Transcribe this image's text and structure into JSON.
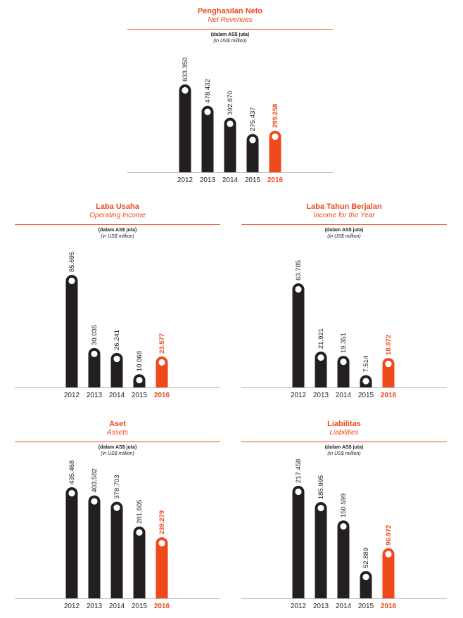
{
  "colors": {
    "accent": "#ef4a1c",
    "bar": "#231f20",
    "baseline": "#bcbcbc"
  },
  "chart_data": [
    {
      "type": "bar",
      "title": "Penghasilan Neto",
      "subtitle": "Net Revenues",
      "unit_id": "(dalam AS$ juta)",
      "unit_en": "(in US$ million)",
      "categories": [
        "2012",
        "2013",
        "2014",
        "2015",
        "2016"
      ],
      "values": [
        633.35,
        478.432,
        392.67,
        275.437,
        299.258
      ],
      "value_labels": [
        "633.350",
        "478.432",
        "392.670",
        "275.437",
        "299.258"
      ],
      "highlight": "2016",
      "ylim": [
        0,
        633.35
      ]
    },
    {
      "type": "bar",
      "title": "Laba Usaha",
      "subtitle": "Operating Income",
      "unit_id": "(dalam AS$ juta)",
      "unit_en": "(in US$ million)",
      "categories": [
        "2012",
        "2013",
        "2014",
        "2015",
        "2016"
      ],
      "values": [
        85.695,
        30.035,
        26.241,
        10.068,
        23.577
      ],
      "value_labels": [
        "85.695",
        "30.035",
        "26.241",
        "10.068",
        "23.577"
      ],
      "highlight": "2016",
      "ylim": [
        0,
        85.695
      ]
    },
    {
      "type": "bar",
      "title": "Laba Tahun Berjalan",
      "subtitle": "Income for the Year",
      "unit_id": "(dalam AS$ juta)",
      "unit_en": "(in US$ million)",
      "categories": [
        "2012",
        "2013",
        "2014",
        "2015",
        "2016"
      ],
      "values": [
        63.785,
        21.921,
        19.351,
        7.514,
        18.072
      ],
      "value_labels": [
        "63.785",
        "21.921",
        "19.351",
        "7.514",
        "18.072"
      ],
      "highlight": "2016",
      "ylim": [
        0,
        63.785
      ]
    },
    {
      "type": "bar",
      "title": "Aset",
      "subtitle": "Assets",
      "unit_id": "(dalam AS$ juta)",
      "unit_en": "(in US$ million)",
      "categories": [
        "2012",
        "2013",
        "2014",
        "2015",
        "2016"
      ],
      "values": [
        435.468,
        403.582,
        378.703,
        281.605,
        239.279
      ],
      "value_labels": [
        "435.468",
        "403.582",
        "378.703",
        "281.605",
        "239.279"
      ],
      "highlight": "2016",
      "ylim": [
        0,
        435.468
      ]
    },
    {
      "type": "bar",
      "title": "Liabilitas",
      "subtitle": "Liabilities",
      "unit_id": "(dalam AS$ juta)",
      "unit_en": "(in US$ million)",
      "categories": [
        "2012",
        "2013",
        "2014",
        "2015",
        "2016"
      ],
      "values": [
        217.458,
        185.995,
        150.599,
        52.889,
        96.972
      ],
      "value_labels": [
        "217.458",
        "185.995",
        "150.599",
        "52.889",
        "96.972"
      ],
      "highlight": "2016",
      "ylim": [
        0,
        217.458
      ]
    }
  ]
}
